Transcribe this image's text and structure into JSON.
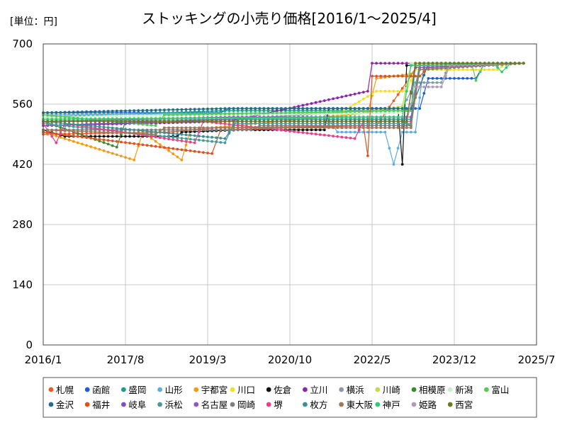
{
  "chart_data": {
    "type": "line",
    "title": "ストッキングの小売り価格[2016/1～2025/4]",
    "unit_label": "[単位：円]",
    "y_ticks": [
      "0",
      "140",
      "280",
      "420",
      "560",
      "700"
    ],
    "ylim": [
      0,
      700
    ],
    "x_ticks": [
      "2016/1",
      "2017/8",
      "2019/3",
      "2020/10",
      "2022/5",
      "2023/12",
      "2025/7"
    ],
    "xlim": [
      "2016-01",
      "2025-07"
    ],
    "grid": true,
    "legend_position": "bottom",
    "series": [
      {
        "name": "札幌",
        "color": "#ee5a24",
        "points": [
          [
            "2016-01",
            490
          ],
          [
            "2018-06",
            495
          ],
          [
            "2019-05",
            505
          ],
          [
            "2022-06",
            510
          ],
          [
            "2023-03",
            640
          ],
          [
            "2025-04",
            655
          ]
        ]
      },
      {
        "name": "函館",
        "color": "#1e5fd0",
        "points": [
          [
            "2016-01",
            540
          ],
          [
            "2019-06",
            540
          ],
          [
            "2019-08",
            550
          ],
          [
            "2023-04",
            550
          ],
          [
            "2023-06",
            620
          ],
          [
            "2024-05",
            620
          ],
          [
            "2024-07",
            655
          ],
          [
            "2025-04",
            655
          ]
        ]
      },
      {
        "name": "盛岡",
        "color": "#16a085",
        "points": [
          [
            "2016-01",
            530
          ],
          [
            "2019-08",
            545
          ],
          [
            "2023-02",
            545
          ],
          [
            "2023-03",
            655
          ],
          [
            "2025-04",
            655
          ]
        ]
      },
      {
        "name": "山形",
        "color": "#5dade2",
        "points": [
          [
            "2016-01",
            535
          ],
          [
            "2021-06",
            540
          ],
          [
            "2021-09",
            495
          ],
          [
            "2022-08",
            495
          ],
          [
            "2022-10",
            420
          ],
          [
            "2022-12",
            495
          ],
          [
            "2023-03",
            495
          ],
          [
            "2023-05",
            655
          ],
          [
            "2025-04",
            655
          ]
        ]
      },
      {
        "name": "宇都宮",
        "color": "#f39c12",
        "points": [
          [
            "2016-01",
            495
          ],
          [
            "2017-10",
            430
          ],
          [
            "2017-12",
            495
          ],
          [
            "2018-09",
            430
          ],
          [
            "2018-11",
            500
          ],
          [
            "2022-04",
            540
          ],
          [
            "2022-06",
            620
          ],
          [
            "2023-02",
            630
          ],
          [
            "2023-04",
            655
          ],
          [
            "2025-04",
            655
          ]
        ]
      },
      {
        "name": "川口",
        "color": "#f1e02a",
        "points": [
          [
            "2016-01",
            510
          ],
          [
            "2021-08",
            530
          ],
          [
            "2022-06",
            590
          ],
          [
            "2023-01",
            590
          ],
          [
            "2023-03",
            640
          ],
          [
            "2024-10",
            640
          ],
          [
            "2024-12",
            655
          ],
          [
            "2025-04",
            655
          ]
        ]
      },
      {
        "name": "佐倉",
        "color": "#111111",
        "points": [
          [
            "2016-01",
            500
          ],
          [
            "2016-06",
            485
          ],
          [
            "2018-08",
            485
          ],
          [
            "2018-09",
            495
          ],
          [
            "2019-10",
            500
          ],
          [
            "2021-06",
            500
          ],
          [
            "2021-07",
            550
          ],
          [
            "2022-11",
            550
          ],
          [
            "2022-12",
            420
          ],
          [
            "2023-01",
            650
          ],
          [
            "2025-04",
            655
          ]
        ]
      },
      {
        "name": "立川",
        "color": "#8e24aa",
        "points": [
          [
            "2016-01",
            510
          ],
          [
            "2019-08",
            520
          ],
          [
            "2022-04",
            590
          ],
          [
            "2022-05",
            655
          ],
          [
            "2025-04",
            655
          ]
        ]
      },
      {
        "name": "横浜",
        "color": "#8e99a8",
        "points": [
          [
            "2016-01",
            520
          ],
          [
            "2019-09",
            525
          ],
          [
            "2022-12",
            550
          ],
          [
            "2023-03",
            610
          ],
          [
            "2023-09",
            610
          ],
          [
            "2023-11",
            655
          ],
          [
            "2025-04",
            655
          ]
        ]
      },
      {
        "name": "川崎",
        "color": "#c8d94a",
        "points": [
          [
            "2016-01",
            525
          ],
          [
            "2021-09",
            530
          ],
          [
            "2022-12",
            555
          ],
          [
            "2023-02",
            655
          ],
          [
            "2025-04",
            655
          ]
        ]
      },
      {
        "name": "相模原",
        "color": "#3a8a2e",
        "points": [
          [
            "2016-01",
            520
          ],
          [
            "2017-06",
            460
          ],
          [
            "2017-08",
            520
          ],
          [
            "2022-12",
            520
          ],
          [
            "2023-02",
            510
          ],
          [
            "2023-04",
            655
          ],
          [
            "2025-04",
            655
          ]
        ]
      },
      {
        "name": "新潟",
        "color": "#c8f0c8",
        "points": [
          [
            "2016-01",
            530
          ],
          [
            "2022-12",
            540
          ],
          [
            "2023-02",
            655
          ],
          [
            "2025-04",
            655
          ]
        ]
      },
      {
        "name": "富山",
        "color": "#55cc55",
        "points": [
          [
            "2016-01",
            535
          ],
          [
            "2018-03",
            510
          ],
          [
            "2018-05",
            535
          ],
          [
            "2023-02",
            545
          ],
          [
            "2023-04",
            655
          ],
          [
            "2024-04",
            655
          ],
          [
            "2024-05",
            615
          ],
          [
            "2024-07",
            655
          ],
          [
            "2025-04",
            655
          ]
        ]
      },
      {
        "name": "金沢",
        "color": "#1f6f8b",
        "points": [
          [
            "2016-01",
            540
          ],
          [
            "2019-08",
            550
          ],
          [
            "2023-02",
            550
          ],
          [
            "2023-04",
            600
          ],
          [
            "2023-06",
            655
          ],
          [
            "2025-04",
            655
          ]
        ]
      },
      {
        "name": "福井",
        "color": "#e0521b",
        "points": [
          [
            "2016-01",
            495
          ],
          [
            "2019-04",
            445
          ],
          [
            "2019-06",
            500
          ],
          [
            "2022-03",
            510
          ],
          [
            "2022-04",
            440
          ],
          [
            "2022-05",
            625
          ],
          [
            "2023-04",
            625
          ],
          [
            "2023-06",
            645
          ],
          [
            "2025-04",
            655
          ]
        ]
      },
      {
        "name": "岐阜",
        "color": "#7b4fc9",
        "points": [
          [
            "2016-01",
            510
          ],
          [
            "2019-08",
            525
          ],
          [
            "2023-01",
            525
          ],
          [
            "2023-03",
            645
          ],
          [
            "2025-04",
            655
          ]
        ]
      },
      {
        "name": "浜松",
        "color": "#4a9a9a",
        "points": [
          [
            "2016-01",
            515
          ],
          [
            "2019-07",
            470
          ],
          [
            "2019-09",
            515
          ],
          [
            "2023-02",
            515
          ],
          [
            "2023-04",
            655
          ],
          [
            "2025-04",
            655
          ]
        ]
      },
      {
        "name": "名古屋",
        "color": "#8e55c8",
        "points": [
          [
            "2016-01",
            520
          ],
          [
            "2019-09",
            530
          ],
          [
            "2023-02",
            530
          ],
          [
            "2023-04",
            645
          ],
          [
            "2025-04",
            655
          ]
        ]
      },
      {
        "name": "岡崎",
        "color": "#7f7f7f",
        "points": [
          [
            "2016-01",
            500
          ],
          [
            "2020-01",
            500
          ],
          [
            "2020-03",
            510
          ],
          [
            "2023-02",
            510
          ],
          [
            "2023-04",
            640
          ],
          [
            "2025-04",
            655
          ]
        ]
      },
      {
        "name": "堺",
        "color": "#e8408a",
        "points": [
          [
            "2016-01",
            515
          ],
          [
            "2016-04",
            470
          ],
          [
            "2016-06",
            515
          ],
          [
            "2018-12",
            470
          ],
          [
            "2019-02",
            520
          ],
          [
            "2022-01",
            480
          ],
          [
            "2022-03",
            520
          ],
          [
            "2023-02",
            520
          ],
          [
            "2023-04",
            650
          ],
          [
            "2025-04",
            655
          ]
        ]
      },
      {
        "name": "枚方",
        "color": "#3d8f96",
        "points": [
          [
            "2016-01",
            520
          ],
          [
            "2019-07",
            480
          ],
          [
            "2019-10",
            525
          ],
          [
            "2023-02",
            525
          ],
          [
            "2023-04",
            655
          ],
          [
            "2025-04",
            655
          ]
        ]
      },
      {
        "name": "東大阪",
        "color": "#a0775a",
        "points": [
          [
            "2016-01",
            500
          ],
          [
            "2018-03",
            490
          ],
          [
            "2018-05",
            505
          ],
          [
            "2023-02",
            505
          ],
          [
            "2023-04",
            650
          ],
          [
            "2025-04",
            655
          ]
        ]
      },
      {
        "name": "神戸",
        "color": "#2ecc71",
        "points": [
          [
            "2016-01",
            525
          ],
          [
            "2022-12",
            530
          ],
          [
            "2023-02",
            650
          ],
          [
            "2024-09",
            655
          ],
          [
            "2024-11",
            635
          ],
          [
            "2025-01",
            655
          ],
          [
            "2025-04",
            655
          ]
        ]
      },
      {
        "name": "姫路",
        "color": "#b39ab3",
        "points": [
          [
            "2016-01",
            520
          ],
          [
            "2023-01",
            520
          ],
          [
            "2023-03",
            600
          ],
          [
            "2023-09",
            600
          ],
          [
            "2023-11",
            650
          ],
          [
            "2025-04",
            655
          ]
        ]
      },
      {
        "name": "西宮",
        "color": "#6b7a1a",
        "points": [
          [
            "2016-01",
            520
          ],
          [
            "2023-01",
            520
          ],
          [
            "2023-03",
            655
          ],
          [
            "2025-04",
            655
          ]
        ]
      }
    ]
  }
}
